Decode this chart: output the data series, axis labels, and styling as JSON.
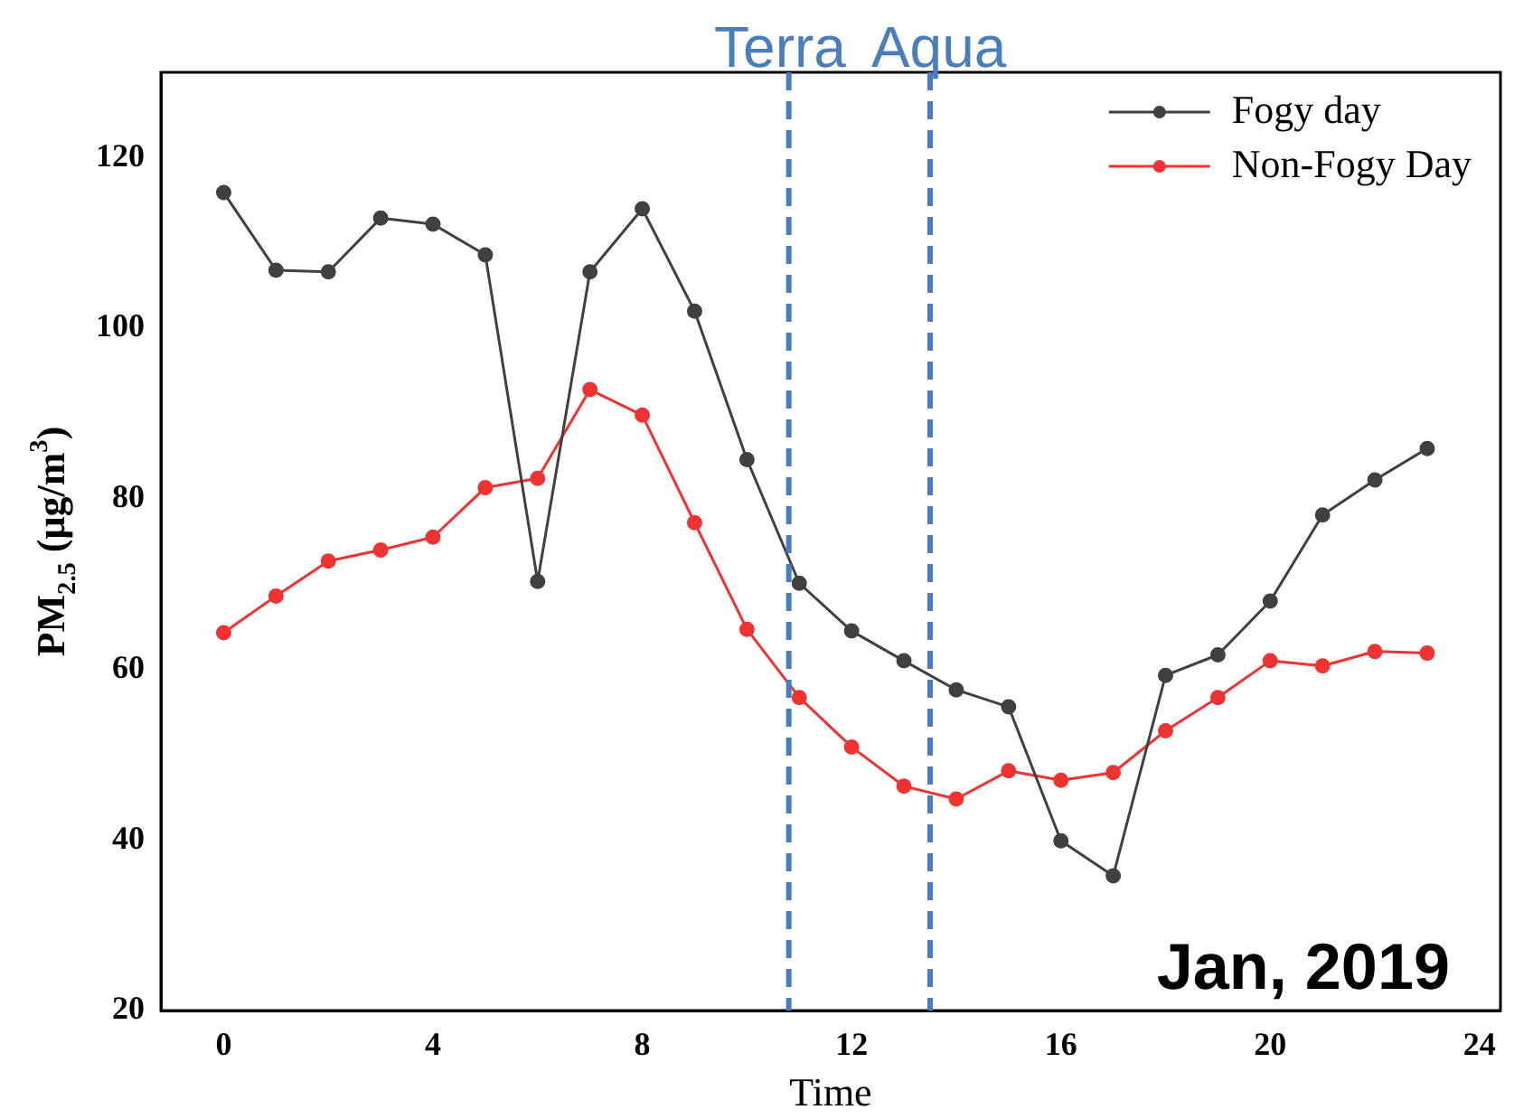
{
  "chart_data": {
    "type": "line",
    "xlabel": "Time",
    "ylabel": "PM$_{2.5}$ (μg/m$^{3}$)",
    "x": [
      0,
      1,
      2,
      3,
      4,
      5,
      6,
      7,
      8,
      9,
      10,
      11,
      12,
      13,
      14,
      15,
      16,
      17,
      18,
      19,
      20,
      21,
      22,
      23
    ],
    "series": [
      {
        "name": "Fogy day",
        "color": "#404040",
        "values": [
          115.9,
          106.8,
          106.6,
          112.9,
          112.2,
          108.6,
          70.3,
          106.6,
          114,
          102,
          84.6,
          70.1,
          64.5,
          61,
          57.6,
          55.6,
          39.9,
          35.8,
          59.3,
          61.7,
          68,
          78.1,
          82.2,
          85.9
        ]
      },
      {
        "name": "Non-Fogy Day",
        "color": "#ee3333",
        "values": [
          64.3,
          68.6,
          72.7,
          74,
          75.5,
          81.3,
          82.4,
          92.8,
          89.8,
          77.2,
          64.7,
          56.7,
          50.9,
          46.3,
          44.8,
          48.1,
          47,
          47.9,
          52.8,
          56.7,
          61,
          60.4,
          62.1,
          61.9
        ]
      }
    ],
    "xlim": [
      -1.2,
      24.4
    ],
    "xticks": [
      0,
      4,
      8,
      12,
      16,
      20,
      24
    ],
    "ylim": [
      20,
      130
    ],
    "yticks": [
      20,
      40,
      60,
      80,
      100,
      120
    ],
    "ref_lines": [
      {
        "axis": "x",
        "value": 10.8,
        "label": "Terra",
        "color": "#4a7ebb",
        "line_style": "dashed"
      },
      {
        "axis": "x",
        "value": 13.5,
        "label": "Aqua",
        "color": "#4a7ebb",
        "line_style": "dashed"
      }
    ],
    "annotations": [
      "Jan, 2019"
    ],
    "legend": "top right",
    "marker": "circle",
    "line_style": "solid",
    "grid": false
  }
}
